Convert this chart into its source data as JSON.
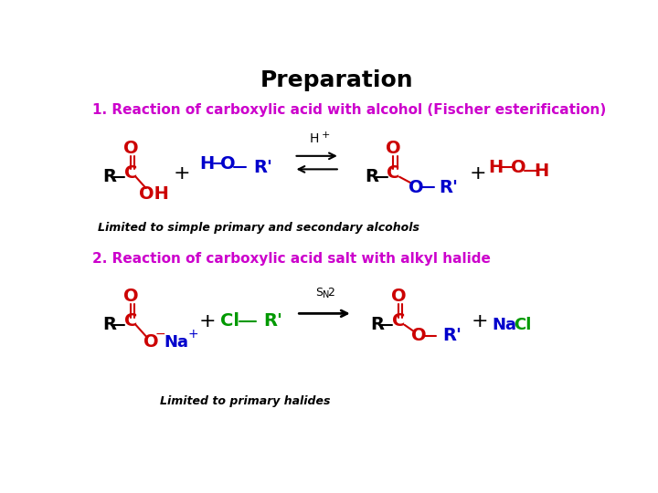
{
  "title": "Preparation",
  "title_fontsize": 18,
  "background_color": "#ffffff",
  "reaction1_label": "1. Reaction of carboxylic acid with alcohol (Fischer esterification)",
  "reaction1_color": "#cc00cc",
  "reaction1_fontsize": 11,
  "reaction2_label": "2. Reaction of carboxylic acid salt with alkyl halide",
  "reaction2_color": "#cc00cc",
  "reaction2_fontsize": 11,
  "note1": "Limited to simple primary and secondary alcohols",
  "note1_fontsize": 9,
  "note2": "Limited to primary halides",
  "note2_fontsize": 9,
  "struct_fontsize": 14,
  "label_fontsize": 13,
  "red": "#cc0000",
  "blue": "#0000cc",
  "green": "#009900",
  "black": "#000000"
}
